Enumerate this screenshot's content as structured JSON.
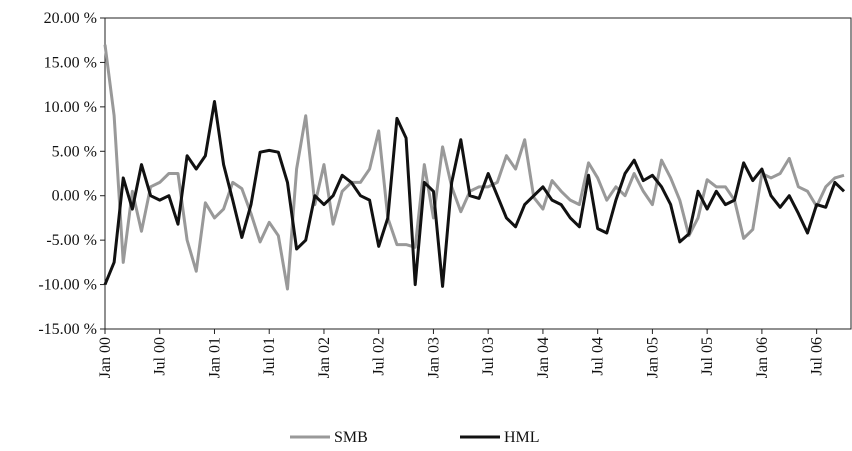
{
  "chart_data": {
    "type": "line",
    "categories": [
      "Jan 00",
      null,
      null,
      null,
      null,
      null,
      "Jul 00",
      null,
      null,
      null,
      null,
      null,
      "Jan 01",
      null,
      null,
      null,
      null,
      null,
      "Jul 01",
      null,
      null,
      null,
      null,
      null,
      "Jan 02",
      null,
      null,
      null,
      null,
      null,
      "Jul 02",
      null,
      null,
      null,
      null,
      null,
      "Jan 03",
      null,
      null,
      null,
      null,
      null,
      "Jul 03",
      null,
      null,
      null,
      null,
      null,
      "Jan 04",
      null,
      null,
      null,
      null,
      null,
      "Jul 04",
      null,
      null,
      null,
      null,
      null,
      "Jan 05",
      null,
      null,
      null,
      null,
      null,
      "Jul 05",
      null,
      null,
      null,
      null,
      null,
      "Jan 06",
      null,
      null,
      null,
      null,
      null,
      "Jul 06",
      null,
      null,
      null
    ],
    "series": [
      {
        "name": "SMB",
        "color": "#999999",
        "values": [
          17,
          9,
          -7.5,
          0.5,
          -4,
          1,
          1.5,
          2.5,
          2.5,
          -5,
          -8.5,
          -0.8,
          -2.5,
          -1.5,
          1.5,
          0.8,
          -2,
          -5.2,
          -3,
          -4.5,
          -10.5,
          3,
          9,
          -1,
          3.5,
          -3.2,
          0.5,
          1.5,
          1.5,
          3,
          7.3,
          -2.5,
          -5.5,
          -5.5,
          -5.8,
          3.5,
          -2.5,
          5.5,
          1,
          -1.8,
          0.5,
          1,
          1,
          1.5,
          4.5,
          3,
          6.3,
          -0.2,
          -1.5,
          1.7,
          0.5,
          -0.5,
          -1,
          3.7,
          2,
          -0.5,
          1,
          0,
          2.5,
          0.5,
          -1,
          4,
          2,
          -0.5,
          -4.5,
          -2.5,
          1.8,
          1,
          1,
          -0.5,
          -4.8,
          -3.8,
          2.5,
          2,
          2.5,
          4.2,
          1,
          0.5,
          -1.2,
          1,
          2,
          2.3
        ]
      },
      {
        "name": "HML",
        "color": "#111111",
        "values": [
          -10,
          -7.5,
          2,
          -1.5,
          3.5,
          0,
          -0.5,
          0,
          -3.2,
          4.5,
          3,
          4.5,
          10.6,
          3.5,
          -0.5,
          -4.7,
          -1,
          4.9,
          5.1,
          4.9,
          1.5,
          -6,
          -5,
          0,
          -1,
          0,
          2.3,
          1.5,
          0,
          -0.5,
          -5.7,
          -2.5,
          8.7,
          6.5,
          -10,
          1.5,
          0.5,
          -10.2,
          1.5,
          6.3,
          0,
          -0.3,
          2.5,
          0,
          -2.5,
          -3.5,
          -1,
          0,
          1,
          -0.5,
          -1,
          -2.5,
          -3.5,
          2.3,
          -3.7,
          -4.2,
          -0.5,
          2.5,
          4,
          1.7,
          2.3,
          1,
          -1,
          -5.2,
          -4.3,
          0.5,
          -1.5,
          0.5,
          -1,
          -0.5,
          3.7,
          1.7,
          3,
          0,
          -1.3,
          0,
          -2,
          -4.2,
          -1,
          -1.3,
          1.5,
          0.5
        ]
      }
    ],
    "ylim": [
      -15,
      20
    ],
    "yticks": [
      {
        "value": -15,
        "label": "-15.00 %"
      },
      {
        "value": -10,
        "label": "-10.00 %"
      },
      {
        "value": -5,
        "label": "-5.00 %"
      },
      {
        "value": 0,
        "label": "0.00 %"
      },
      {
        "value": 5,
        "label": "5.00 %"
      },
      {
        "value": 10,
        "label": "10.00 %"
      },
      {
        "value": 15,
        "label": "15.00 %"
      },
      {
        "value": 20,
        "label": "20.00 %"
      }
    ],
    "legend": "bottom"
  }
}
